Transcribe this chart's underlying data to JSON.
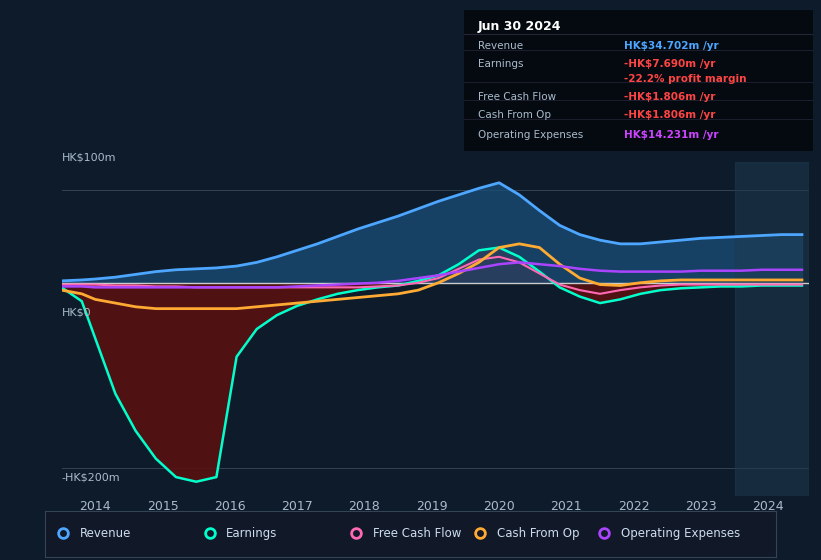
{
  "bg_color": "#0d1b2a",
  "title": "Jun 30 2024",
  "ylabel_top": "HK$100m",
  "ylabel_zero": "HK$0",
  "ylabel_bottom": "-HK$200m",
  "xlabels": [
    "2014",
    "2015",
    "2016",
    "2017",
    "2018",
    "2019",
    "2020",
    "2021",
    "2022",
    "2023",
    "2024"
  ],
  "legend": [
    {
      "label": "Revenue",
      "color": "#4da6ff"
    },
    {
      "label": "Earnings",
      "color": "#00ffcc"
    },
    {
      "label": "Free Cash Flow",
      "color": "#ff69b4"
    },
    {
      "label": "Cash From Op",
      "color": "#ffaa33"
    },
    {
      "label": "Operating Expenses",
      "color": "#aa44ff"
    }
  ],
  "years": [
    2013.5,
    2013.8,
    2014.0,
    2014.3,
    2014.6,
    2014.9,
    2015.2,
    2015.5,
    2015.8,
    2016.1,
    2016.4,
    2016.7,
    2017.0,
    2017.3,
    2017.6,
    2017.9,
    2018.2,
    2018.5,
    2018.8,
    2019.1,
    2019.4,
    2019.7,
    2020.0,
    2020.3,
    2020.6,
    2020.9,
    2021.2,
    2021.5,
    2021.8,
    2022.1,
    2022.4,
    2022.7,
    2023.0,
    2023.3,
    2023.6,
    2023.9,
    2024.2,
    2024.5
  ],
  "revenue": [
    2,
    3,
    4,
    6,
    9,
    12,
    14,
    15,
    16,
    18,
    22,
    28,
    35,
    42,
    50,
    58,
    65,
    72,
    80,
    88,
    95,
    102,
    108,
    95,
    78,
    62,
    52,
    46,
    42,
    42,
    44,
    46,
    48,
    49,
    50,
    51,
    52,
    52
  ],
  "earnings": [
    -5,
    -20,
    -60,
    -120,
    -160,
    -190,
    -210,
    -215,
    -210,
    -80,
    -50,
    -35,
    -25,
    -18,
    -12,
    -8,
    -5,
    -3,
    2,
    8,
    20,
    35,
    38,
    28,
    12,
    -5,
    -15,
    -22,
    -18,
    -12,
    -8,
    -6,
    -5,
    -4,
    -4,
    -3,
    -3,
    -3
  ],
  "free_cash_flow": [
    -2,
    -2,
    -2,
    -3,
    -3,
    -4,
    -4,
    -5,
    -5,
    -5,
    -5,
    -5,
    -5,
    -5,
    -5,
    -5,
    -4,
    -3,
    0,
    5,
    15,
    25,
    28,
    22,
    10,
    -2,
    -8,
    -12,
    -8,
    -5,
    -3,
    -2,
    -2,
    -2,
    -2,
    -2,
    -2,
    -2
  ],
  "cash_from_op": [
    -8,
    -12,
    -18,
    -22,
    -26,
    -28,
    -28,
    -28,
    -28,
    -28,
    -26,
    -24,
    -22,
    -20,
    -18,
    -16,
    -14,
    -12,
    -8,
    0,
    10,
    22,
    38,
    42,
    38,
    20,
    5,
    -2,
    -3,
    0,
    2,
    3,
    3,
    3,
    3,
    3,
    3,
    3
  ],
  "op_expenses": [
    -4,
    -4,
    -5,
    -5,
    -5,
    -5,
    -5,
    -5,
    -5,
    -5,
    -5,
    -5,
    -4,
    -3,
    -2,
    -1,
    0,
    2,
    5,
    8,
    12,
    16,
    20,
    22,
    20,
    18,
    15,
    13,
    12,
    12,
    12,
    12,
    13,
    13,
    13,
    14,
    14,
    14
  ],
  "info_rows": [
    {
      "label": "Revenue",
      "value": "HK$34.702m /yr",
      "value_color": "#4da6ff",
      "label_color": "#aabbcc"
    },
    {
      "label": "Earnings",
      "value": "-HK$7.690m /yr",
      "value_color": "#ff4444",
      "label_color": "#aabbcc"
    },
    {
      "label": "",
      "value": "-22.2% profit margin",
      "value_color": "#ff4444",
      "label_color": "#aabbcc"
    },
    {
      "label": "Free Cash Flow",
      "value": "-HK$1.806m /yr",
      "value_color": "#ff4444",
      "label_color": "#aabbcc"
    },
    {
      "label": "Cash From Op",
      "value": "-HK$1.806m /yr",
      "value_color": "#ff4444",
      "label_color": "#aabbcc"
    },
    {
      "label": "Operating Expenses",
      "value": "HK$14.231m /yr",
      "value_color": "#cc44ff",
      "label_color": "#aabbcc"
    }
  ]
}
